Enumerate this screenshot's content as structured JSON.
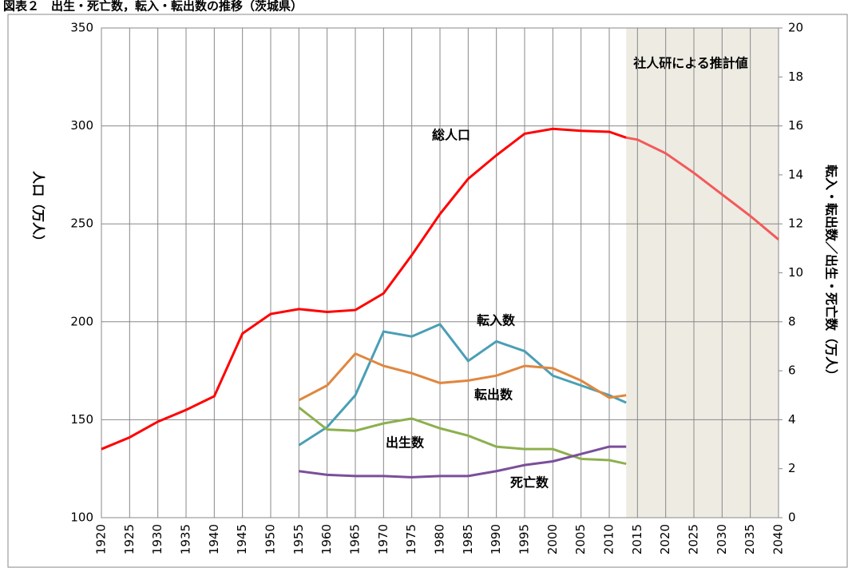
{
  "chart_data": {
    "type": "line",
    "title": "図表２　出生・死亡数，転入・転出数の推移（茨城県）",
    "y_label": "人口（万人）",
    "y2_label": "転入・転出数／出生・死亡数（万人）",
    "annotation": "社人研による推計値",
    "xlim": [
      1920,
      2040
    ],
    "xticks": [
      1920,
      1925,
      1930,
      1935,
      1940,
      1945,
      1950,
      1955,
      1960,
      1965,
      1970,
      1975,
      1980,
      1985,
      1990,
      1995,
      2000,
      2005,
      2010,
      2015,
      2020,
      2025,
      2030,
      2035,
      2040
    ],
    "ylim": [
      100,
      350
    ],
    "yticks": [
      100,
      150,
      200,
      250,
      300,
      350
    ],
    "y2lim": [
      0,
      20
    ],
    "y2ticks": [
      0,
      2,
      4,
      6,
      8,
      10,
      12,
      14,
      16,
      18,
      20
    ],
    "grid": true,
    "series": [
      {
        "name": "総人口",
        "color": "#ff0000",
        "x": [
          1920,
          1925,
          1930,
          1935,
          1940,
          1945,
          1950,
          1955,
          1960,
          1965,
          1970,
          1975,
          1980,
          1985,
          1990,
          1995,
          2000,
          2005,
          2010,
          2013
        ],
        "values": [
          135,
          141,
          149,
          155,
          162,
          194,
          204,
          206.5,
          205,
          206,
          214.5,
          234,
          255,
          273,
          285,
          296,
          298.5,
          297.5,
          297,
          294
        ]
      },
      {
        "color": "#f25a5a",
        "x": [
          2013,
          2015,
          2020,
          2025,
          2030,
          2035,
          2040
        ],
        "values": [
          294,
          293,
          286,
          276,
          265,
          254,
          242
        ],
        "projection": true
      },
      {
        "name": "転入数",
        "color": "#4a9fb5",
        "axis": "y2",
        "x": [
          1955,
          1960,
          1965,
          1970,
          1975,
          1980,
          1985,
          1990,
          1995,
          2000,
          2005,
          2010,
          2013
        ],
        "values": [
          2.96,
          3.7,
          5.0,
          7.6,
          7.4,
          7.9,
          6.4,
          7.2,
          6.8,
          5.8,
          5.4,
          5.0,
          4.7
        ]
      },
      {
        "name": "転出数",
        "color": "#e0873f",
        "axis": "y2",
        "x": [
          1955,
          1960,
          1965,
          1970,
          1975,
          1980,
          1985,
          1990,
          1995,
          2000,
          2005,
          2010,
          2013
        ],
        "values": [
          4.8,
          5.4,
          6.7,
          6.2,
          5.9,
          5.5,
          5.6,
          5.8,
          6.2,
          6.1,
          5.6,
          4.9,
          5.0
        ]
      },
      {
        "name": "出生数",
        "color": "#8db04e",
        "axis": "y2",
        "x": [
          1955,
          1960,
          1965,
          1970,
          1975,
          1980,
          1985,
          1990,
          1995,
          2000,
          2005,
          2010,
          2013
        ],
        "values": [
          4.5,
          3.6,
          3.55,
          3.85,
          4.05,
          3.65,
          3.35,
          2.9,
          2.8,
          2.8,
          2.4,
          2.35,
          2.2
        ]
      },
      {
        "name": "死亡数",
        "color": "#7a4f9b",
        "axis": "y2",
        "x": [
          1955,
          1960,
          1965,
          1970,
          1975,
          1980,
          1985,
          1990,
          1995,
          2000,
          2005,
          2010,
          2013
        ],
        "values": [
          1.9,
          1.75,
          1.7,
          1.7,
          1.65,
          1.7,
          1.7,
          1.9,
          2.15,
          2.3,
          2.6,
          2.9,
          2.9
        ]
      }
    ]
  }
}
